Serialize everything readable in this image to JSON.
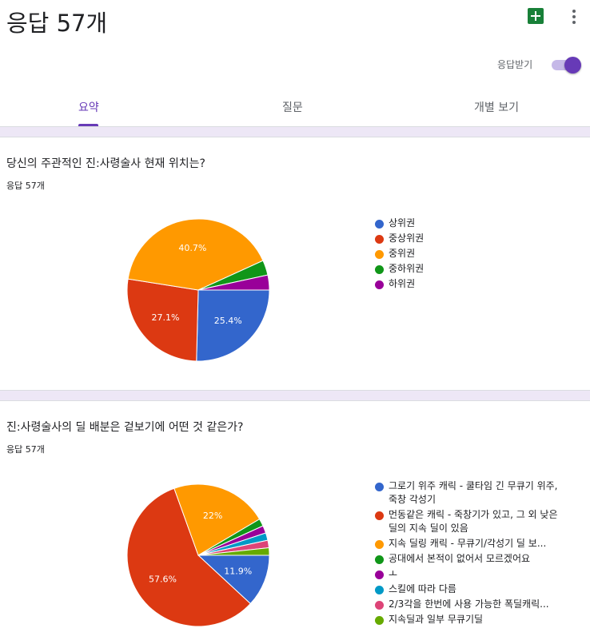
{
  "header": {
    "title": "응답 57개",
    "accept_label": "응답받기",
    "accepting": true,
    "accent_color": "#673ab7"
  },
  "tabs": [
    {
      "label": "요약",
      "active": true
    },
    {
      "label": "질문",
      "active": false
    },
    {
      "label": "개별 보기",
      "active": false
    }
  ],
  "questions": [
    {
      "title": "당신의 주관적인 진:사령술사 현재 위치는?",
      "response_count": "응답 57개",
      "chart_data": {
        "type": "pie",
        "categories": [
          "상위권",
          "중상위권",
          "중위권",
          "중하위권",
          "하위권"
        ],
        "values": [
          25.4,
          27.1,
          40.7,
          3.4,
          3.4
        ],
        "value_labels": [
          "25.4%",
          "27.1%",
          "40.7%",
          "",
          ""
        ],
        "colors": [
          "#3366cc",
          "#dc3912",
          "#ff9900",
          "#109618",
          "#990099"
        ],
        "legend_position": "right"
      }
    },
    {
      "title": "진:사령술사의 딜 배분은 겉보기에 어떤 것 같은가?",
      "response_count": "응답 57개",
      "chart_data": {
        "type": "pie",
        "categories": [
          "그로기 위주 캐릭 - 쿨타임 긴 무큐기 위주, 죽창 각성기",
          "먼동같은 캐릭 - 죽창기가 있고, 그 외 낮은 딜의 지속 딜이 있음",
          "지속 딜링 캐릭 - 무큐기/각성기 딜 보...",
          "공대에서 본적이 없어서 모르겠어요",
          "ㅗ",
          "스킬에 따라 다름",
          "2/3각을 한번에 사용 가능한 폭딜캐릭...",
          "지속딜과 일부 무큐기딜"
        ],
        "values": [
          11.9,
          57.6,
          22.0,
          1.7,
          1.7,
          1.7,
          1.7,
          1.7
        ],
        "value_labels": [
          "11.9%",
          "57.6%",
          "22%",
          "",
          "",
          "",
          "",
          ""
        ],
        "colors": [
          "#3366cc",
          "#dc3912",
          "#ff9900",
          "#109618",
          "#990099",
          "#0099c6",
          "#dd4477",
          "#66aa00"
        ],
        "legend_position": "right"
      }
    }
  ]
}
